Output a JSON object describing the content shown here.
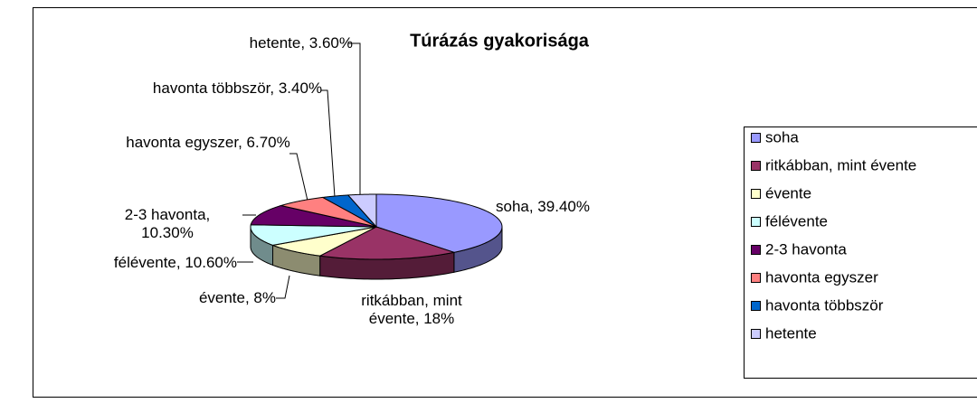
{
  "chart_data": {
    "type": "pie3d",
    "title": "Túrázás gyakorisága",
    "categories": [
      "soha",
      "ritkábban, mint évente",
      "évente",
      "félévente",
      "2-3 havonta",
      "havonta egyszer",
      "havonta többször",
      "hetente"
    ],
    "values": [
      39.4,
      18,
      8,
      10.6,
      10.3,
      6.7,
      3.4,
      3.6
    ],
    "value_labels": [
      "soha, 39.40%",
      "ritkábban, mint évente, 18%",
      "évente, 8%",
      "félévente, 10.60%",
      "2-3 havonta, 10.30%",
      "havonta egyszer, 6.70%",
      "havonta többször, 3.40%",
      "hetente, 3.60%"
    ],
    "colors": [
      "#9999ff",
      "#993366",
      "#ffffcc",
      "#ccffff",
      "#660066",
      "#ff8080",
      "#0066cc",
      "#ccccff"
    ],
    "legend": "right"
  }
}
